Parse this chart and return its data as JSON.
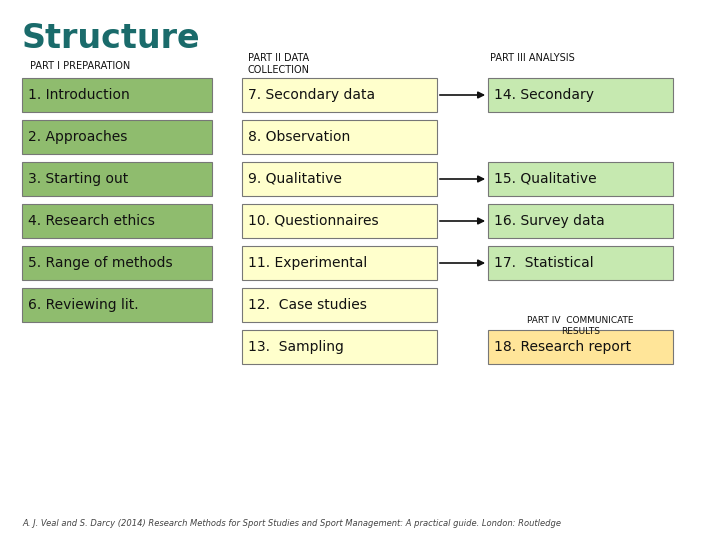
{
  "title": "Structure",
  "title_color": "#1a6b6b",
  "background_color": "#ffffff",
  "part1_label": "PART I PREPARATION",
  "part2_label": "PART II DATA\nCOLLECTION",
  "part3_label": "PART III ANALYSIS",
  "part4_label": "PART IV  COMMUNICATE\nRESULTS",
  "col1_items": [
    "1. Introduction",
    "2. Approaches",
    "3. Starting out",
    "4. Research ethics",
    "5. Range of methods",
    "6. Reviewing lit."
  ],
  "col2_items": [
    "7. Secondary data",
    "8. Observation",
    "9. Qualitative",
    "10. Questionnaires",
    "11. Experimental",
    "12.  Case studies",
    "13.  Sampling"
  ],
  "col3_items": [
    "14. Secondary",
    "",
    "15. Qualitative",
    "16. Survey data",
    "17.  Statistical",
    "",
    "18. Research report"
  ],
  "col1_bg": "#8fbc6e",
  "col2_bg": "#ffffcc",
  "col3_bg_green": "#c6e9b0",
  "col3_bg_yellow": "#ffe599",
  "arrow_color": "#111111",
  "box_edge_color": "#777777",
  "footnote": "A. J. Veal and S. Darcy (2014) Research Methods for Sport Studies and Sport Management: A practical guide. London: Routledge"
}
